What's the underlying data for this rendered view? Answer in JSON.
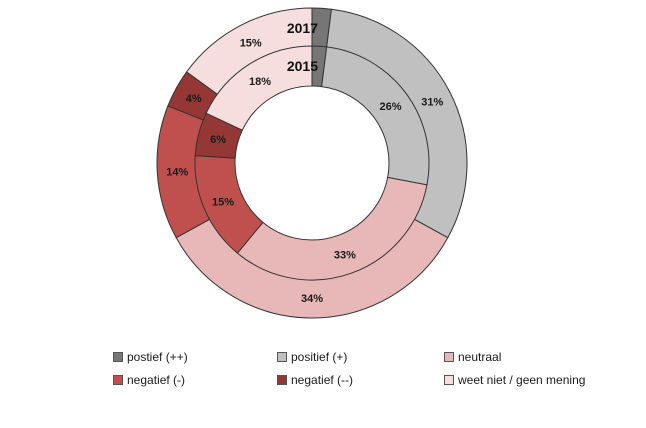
{
  "chart_data": {
    "type": "pie",
    "variant": "nested-donut",
    "legend_position": "bottom",
    "categories": [
      "postief (++)",
      "positief (+)",
      "neutraal",
      "negatief (-)",
      "negatief (--)",
      "weet niet / geen mening"
    ],
    "colors": [
      "#767676",
      "#c0c0c0",
      "#e8b8b8",
      "#c0504d",
      "#953735",
      "#f6dede"
    ],
    "series": [
      {
        "name": "2017",
        "ring": "outer",
        "values": [
          2,
          31,
          34,
          14,
          4,
          15
        ],
        "labels": [
          "",
          "31%",
          "34%",
          "14%",
          "4%",
          "15%"
        ]
      },
      {
        "name": "2015",
        "ring": "inner",
        "values": [
          2,
          26,
          33,
          15,
          6,
          18
        ],
        "labels": [
          "",
          "26%",
          "33%",
          "15%",
          "6%",
          "18%"
        ]
      }
    ]
  }
}
